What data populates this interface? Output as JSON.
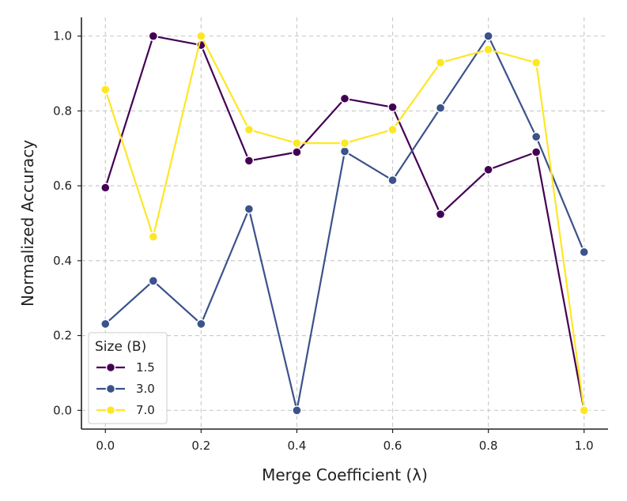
{
  "chart_data": {
    "type": "line",
    "title": "",
    "xlabel": "Merge Coefficient (λ)",
    "ylabel": "Normalized Accuracy",
    "xlim": [
      -0.05,
      1.05
    ],
    "ylim": [
      -0.05,
      1.05
    ],
    "grid": true,
    "x_ticks": [
      0.0,
      0.2,
      0.4,
      0.6,
      0.8,
      1.0
    ],
    "x_tick_labels": [
      "0.0",
      "0.2",
      "0.4",
      "0.6",
      "0.8",
      "1.0"
    ],
    "y_ticks": [
      0.0,
      0.2,
      0.4,
      0.6,
      0.8,
      1.0
    ],
    "y_tick_labels": [
      "0.0",
      "0.2",
      "0.4",
      "0.6",
      "0.8",
      "1.0"
    ],
    "x": [
      0.0,
      0.1,
      0.2,
      0.3,
      0.4,
      0.5,
      0.6,
      0.7,
      0.8,
      0.9,
      1.0
    ],
    "legend": {
      "title": "Size (B)",
      "placement": "lower-left"
    },
    "series": [
      {
        "name": "1.5",
        "color": "#440154",
        "values": [
          0.595,
          1.0,
          0.976,
          0.667,
          0.69,
          0.833,
          0.81,
          0.524,
          0.643,
          0.69,
          0.0
        ]
      },
      {
        "name": "3.0",
        "color": "#3b528b",
        "values": [
          0.231,
          0.346,
          0.231,
          0.538,
          0.0,
          0.692,
          0.615,
          0.808,
          1.0,
          0.731,
          0.423
        ]
      },
      {
        "name": "7.0",
        "color": "#fde725",
        "values": [
          0.857,
          0.464,
          1.0,
          0.75,
          0.714,
          0.714,
          0.75,
          0.929,
          0.964,
          0.929,
          0.0
        ]
      }
    ]
  }
}
